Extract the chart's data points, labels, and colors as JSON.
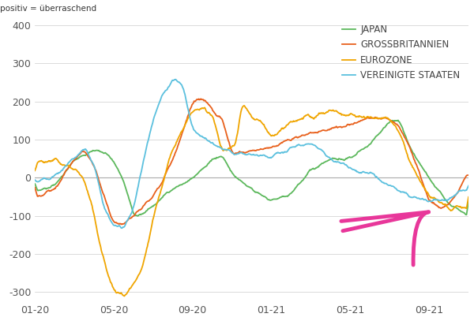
{
  "legend": [
    "JAPAN",
    "GROSSBRITANNIEN",
    "EUROZONE",
    "VEREINIGTE STAATEN"
  ],
  "colors": {
    "JAPAN": "#5cb85c",
    "GROSSBRITANNIEN": "#e8601c",
    "EUROZONE": "#f0a500",
    "VEREINIGTE STAATEN": "#5bc0de"
  },
  "ylim": [
    -325,
    425
  ],
  "yticks": [
    -300,
    -200,
    -100,
    0,
    100,
    200,
    300,
    400
  ],
  "xtick_labels": [
    "01-20",
    "05-20",
    "09-20",
    "01-21",
    "05-21",
    "09-21"
  ],
  "xtick_positions": [
    0,
    4,
    8,
    12,
    16,
    20
  ],
  "xlim": [
    0,
    22
  ],
  "arrow_color": "#e8379a",
  "grid_color": "#cccccc",
  "zero_line_color": "#aaaaaa"
}
